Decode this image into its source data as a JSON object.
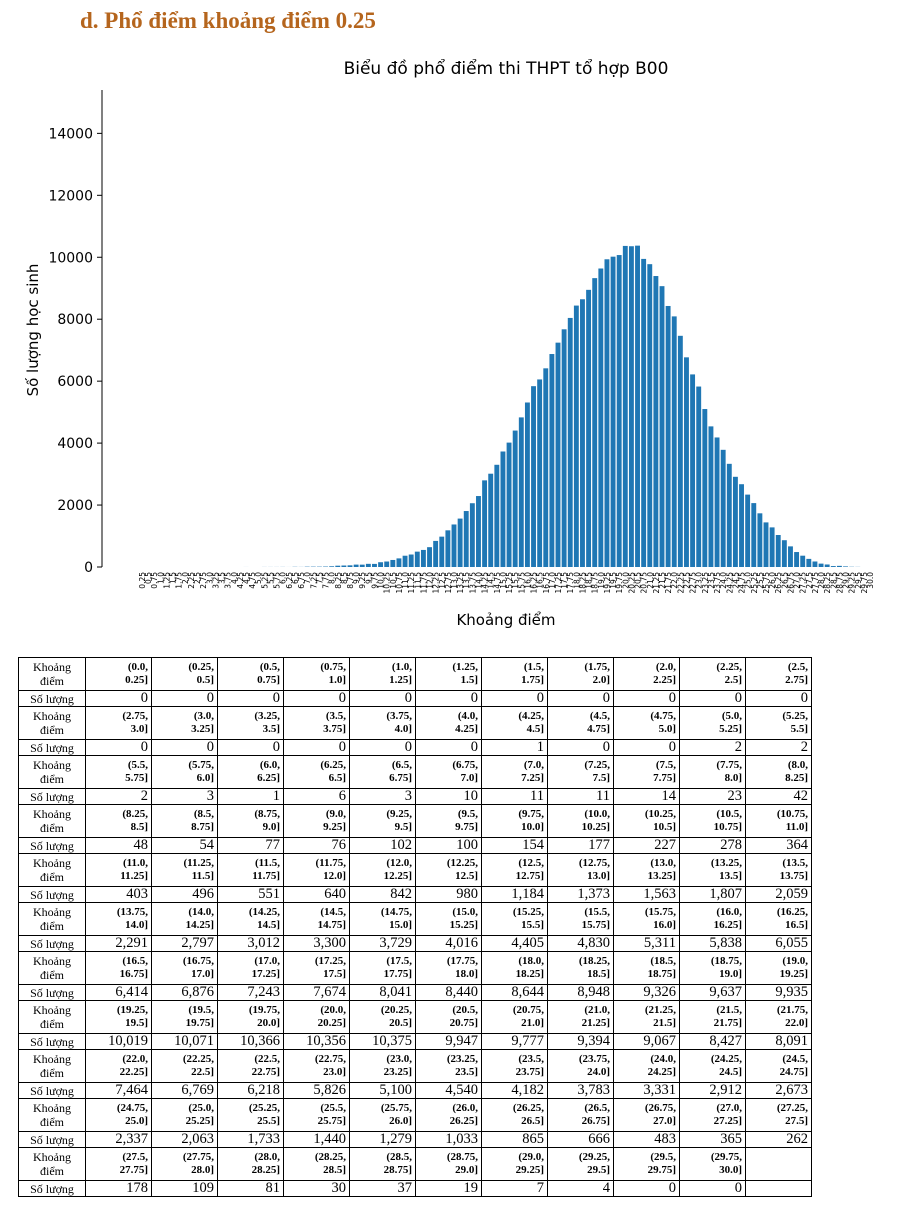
{
  "heading": "d.  Phổ điểm khoảng điểm 0.25",
  "chart_data": {
    "type": "bar",
    "title": "Biểu đồ phổ điểm thi THPT tổ hợp B00",
    "xlabel": "Khoảng điểm",
    "ylabel": "Số lượng học sinh",
    "color": "#1f77b4",
    "categories": [
      "0.25",
      "0.5",
      "0.75",
      "1.0",
      "1.25",
      "1.5",
      "1.75",
      "2.0",
      "2.25",
      "2.5",
      "2.75",
      "3.0",
      "3.25",
      "3.5",
      "3.75",
      "4.0",
      "4.25",
      "4.5",
      "4.75",
      "5.0",
      "5.25",
      "5.5",
      "5.75",
      "6.0",
      "6.25",
      "6.5",
      "6.75",
      "7.0",
      "7.25",
      "7.5",
      "7.75",
      "8.0",
      "8.25",
      "8.5",
      "8.75",
      "9.0",
      "9.25",
      "9.5",
      "9.75",
      "10.0",
      "10.25",
      "10.5",
      "10.75",
      "11.0",
      "11.25",
      "11.5",
      "11.75",
      "12.0",
      "12.25",
      "12.5",
      "12.75",
      "13.0",
      "13.25",
      "13.5",
      "13.75",
      "14.0",
      "14.25",
      "14.5",
      "14.75",
      "15.0",
      "15.25",
      "15.5",
      "15.75",
      "16.0",
      "16.25",
      "16.5",
      "16.75",
      "17.0",
      "17.25",
      "17.5",
      "17.75",
      "18.0",
      "18.25",
      "18.5",
      "18.75",
      "19.0",
      "19.25",
      "19.5",
      "19.75",
      "20.0",
      "20.25",
      "20.5",
      "20.75",
      "21.0",
      "21.25",
      "21.5",
      "21.75",
      "22.0",
      "22.25",
      "22.5",
      "22.75",
      "23.0",
      "23.25",
      "23.5",
      "23.75",
      "24.0",
      "24.25",
      "24.5",
      "24.75",
      "25.0",
      "25.25",
      "25.5",
      "25.75",
      "26.0",
      "26.25",
      "26.5",
      "26.75",
      "27.0",
      "27.25",
      "27.5",
      "27.75",
      "28.0",
      "28.25",
      "28.5",
      "28.75",
      "29.0",
      "29.25",
      "29.5",
      "29.75",
      "30.0"
    ],
    "values": [
      0,
      0,
      0,
      0,
      0,
      0,
      0,
      0,
      0,
      0,
      0,
      0,
      0,
      0,
      0,
      0,
      0,
      1,
      0,
      0,
      2,
      2,
      2,
      3,
      1,
      6,
      3,
      10,
      11,
      11,
      14,
      23,
      42,
      48,
      54,
      77,
      76,
      102,
      100,
      154,
      177,
      227,
      278,
      364,
      403,
      496,
      551,
      640,
      842,
      980,
      1184,
      1373,
      1563,
      1807,
      2059,
      2291,
      2797,
      3012,
      3300,
      3729,
      4016,
      4405,
      4830,
      5311,
      5838,
      6055,
      6414,
      6876,
      7243,
      7674,
      8041,
      8440,
      8644,
      8948,
      9326,
      9637,
      9935,
      10019,
      10071,
      10366,
      10356,
      10375,
      9947,
      9777,
      9394,
      9067,
      8427,
      8091,
      7464,
      6769,
      6218,
      5826,
      5100,
      4540,
      4182,
      3783,
      3331,
      2912,
      2673,
      2337,
      2063,
      1733,
      1440,
      1279,
      1033,
      865,
      666,
      483,
      365,
      262,
      178,
      109,
      81,
      30,
      37,
      19,
      7,
      4,
      0,
      0
    ],
    "ylim": [
      0,
      15400
    ],
    "yticks": [
      0,
      2000,
      4000,
      6000,
      8000,
      10000,
      12000,
      14000
    ]
  },
  "table": {
    "row_labels": [
      "Khoảng điểm",
      "Số lượng"
    ],
    "groups": [
      {
        "intervals": [
          "(0.0, 0.25]",
          "(0.25, 0.5]",
          "(0.5, 0.75]",
          "(0.75, 1.0]",
          "(1.0, 1.25]",
          "(1.25, 1.5]",
          "(1.5, 1.75]",
          "(1.75, 2.0]",
          "(2.0, 2.25]",
          "(2.25, 2.5]",
          "(2.5, 2.75]"
        ],
        "counts": [
          "0",
          "0",
          "0",
          "0",
          "0",
          "0",
          "0",
          "0",
          "0",
          "0",
          "0"
        ]
      },
      {
        "intervals": [
          "(2.75, 3.0]",
          "(3.0, 3.25]",
          "(3.25, 3.5]",
          "(3.5, 3.75]",
          "(3.75, 4.0]",
          "(4.0, 4.25]",
          "(4.25, 4.5]",
          "(4.5, 4.75]",
          "(4.75, 5.0]",
          "(5.0, 5.25]",
          "(5.25, 5.5]"
        ],
        "counts": [
          "0",
          "0",
          "0",
          "0",
          "0",
          "0",
          "1",
          "0",
          "0",
          "2",
          "2"
        ]
      },
      {
        "intervals": [
          "(5.5, 5.75]",
          "(5.75, 6.0]",
          "(6.0, 6.25]",
          "(6.25, 6.5]",
          "(6.5, 6.75]",
          "(6.75, 7.0]",
          "(7.0, 7.25]",
          "(7.25, 7.5]",
          "(7.5, 7.75]",
          "(7.75, 8.0]",
          "(8.0, 8.25]"
        ],
        "counts": [
          "2",
          "3",
          "1",
          "6",
          "3",
          "10",
          "11",
          "11",
          "14",
          "23",
          "42"
        ]
      },
      {
        "intervals": [
          "(8.25, 8.5]",
          "(8.5, 8.75]",
          "(8.75, 9.0]",
          "(9.0, 9.25]",
          "(9.25, 9.5]",
          "(9.5, 9.75]",
          "(9.75, 10.0]",
          "(10.0, 10.25]",
          "(10.25, 10.5]",
          "(10.5, 10.75]",
          "(10.75, 11.0]"
        ],
        "counts": [
          "48",
          "54",
          "77",
          "76",
          "102",
          "100",
          "154",
          "177",
          "227",
          "278",
          "364"
        ]
      },
      {
        "intervals": [
          "(11.0, 11.25]",
          "(11.25, 11.5]",
          "(11.5, 11.75]",
          "(11.75, 12.0]",
          "(12.0, 12.25]",
          "(12.25, 12.5]",
          "(12.5, 12.75]",
          "(12.75, 13.0]",
          "(13.0, 13.25]",
          "(13.25, 13.5]",
          "(13.5, 13.75]"
        ],
        "counts": [
          "403",
          "496",
          "551",
          "640",
          "842",
          "980",
          "1,184",
          "1,373",
          "1,563",
          "1,807",
          "2,059"
        ]
      },
      {
        "intervals": [
          "(13.75, 14.0]",
          "(14.0, 14.25]",
          "(14.25, 14.5]",
          "(14.5, 14.75]",
          "(14.75, 15.0]",
          "(15.0, 15.25]",
          "(15.25, 15.5]",
          "(15.5, 15.75]",
          "(15.75, 16.0]",
          "(16.0, 16.25]",
          "(16.25, 16.5]"
        ],
        "counts": [
          "2,291",
          "2,797",
          "3,012",
          "3,300",
          "3,729",
          "4,016",
          "4,405",
          "4,830",
          "5,311",
          "5,838",
          "6,055"
        ]
      },
      {
        "intervals": [
          "(16.5, 16.75]",
          "(16.75, 17.0]",
          "(17.0, 17.25]",
          "(17.25, 17.5]",
          "(17.5, 17.75]",
          "(17.75, 18.0]",
          "(18.0, 18.25]",
          "(18.25, 18.5]",
          "(18.5, 18.75]",
          "(18.75, 19.0]",
          "(19.0, 19.25]"
        ],
        "counts": [
          "6,414",
          "6,876",
          "7,243",
          "7,674",
          "8,041",
          "8,440",
          "8,644",
          "8,948",
          "9,326",
          "9,637",
          "9,935"
        ]
      },
      {
        "intervals": [
          "(19.25, 19.5]",
          "(19.5, 19.75]",
          "(19.75, 20.0]",
          "(20.0, 20.25]",
          "(20.25, 20.5]",
          "(20.5, 20.75]",
          "(20.75, 21.0]",
          "(21.0, 21.25]",
          "(21.25, 21.5]",
          "(21.5, 21.75]",
          "(21.75, 22.0]"
        ],
        "counts": [
          "10,019",
          "10,071",
          "10,366",
          "10,356",
          "10,375",
          "9,947",
          "9,777",
          "9,394",
          "9,067",
          "8,427",
          "8,091"
        ]
      },
      {
        "intervals": [
          "(22.0, 22.25]",
          "(22.25, 22.5]",
          "(22.5, 22.75]",
          "(22.75, 23.0]",
          "(23.0, 23.25]",
          "(23.25, 23.5]",
          "(23.5, 23.75]",
          "(23.75, 24.0]",
          "(24.0, 24.25]",
          "(24.25, 24.5]",
          "(24.5, 24.75]"
        ],
        "counts": [
          "7,464",
          "6,769",
          "6,218",
          "5,826",
          "5,100",
          "4,540",
          "4,182",
          "3,783",
          "3,331",
          "2,912",
          "2,673"
        ]
      },
      {
        "intervals": [
          "(24.75, 25.0]",
          "(25.0, 25.25]",
          "(25.25, 25.5]",
          "(25.5, 25.75]",
          "(25.75, 26.0]",
          "(26.0, 26.25]",
          "(26.25, 26.5]",
          "(26.5, 26.75]",
          "(26.75, 27.0]",
          "(27.0, 27.25]",
          "(27.25, 27.5]"
        ],
        "counts": [
          "2,337",
          "2,063",
          "1,733",
          "1,440",
          "1,279",
          "1,033",
          "865",
          "666",
          "483",
          "365",
          "262"
        ]
      },
      {
        "intervals": [
          "(27.5, 27.75]",
          "(27.75, 28.0]",
          "(28.0, 28.25]",
          "(28.25, 28.5]",
          "(28.5, 28.75]",
          "(28.75, 29.0]",
          "(29.0, 29.25]",
          "(29.25, 29.5]",
          "(29.5, 29.75]",
          "(29.75, 30.0]"
        ],
        "counts": [
          "178",
          "109",
          "81",
          "30",
          "37",
          "19",
          "7",
          "4",
          "0",
          "0"
        ]
      }
    ]
  }
}
